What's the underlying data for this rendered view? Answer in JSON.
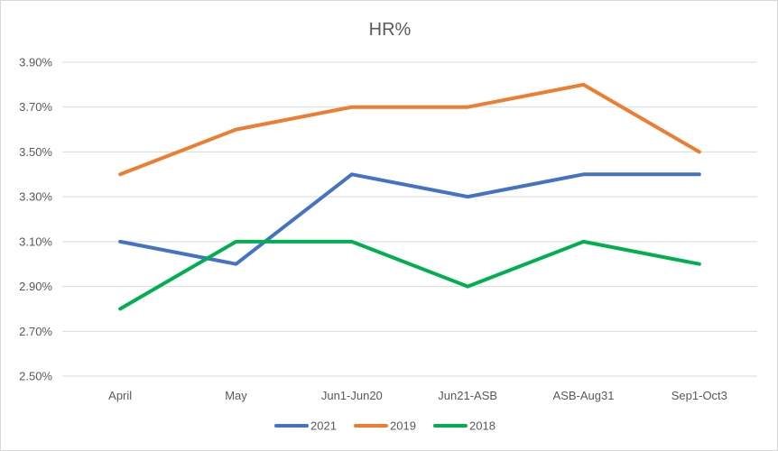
{
  "chart_data": {
    "type": "line",
    "title": "HR%",
    "xlabel": "",
    "ylabel": "",
    "categories": [
      "April",
      "May",
      "Jun1-Jun20",
      "Jun21-ASB",
      "ASB-Aug31",
      "Sep1-Oct3"
    ],
    "y_ticks": [
      "2.50%",
      "2.70%",
      "2.90%",
      "3.10%",
      "3.30%",
      "3.50%",
      "3.70%",
      "3.90%"
    ],
    "ylim": [
      2.5,
      3.9
    ],
    "grid": true,
    "legend_position": "bottom",
    "series": [
      {
        "name": "2021",
        "color": "#4472c4",
        "values": [
          3.1,
          3.0,
          3.4,
          3.3,
          3.4,
          3.4
        ]
      },
      {
        "name": "2019",
        "color": "#ed7d31",
        "values": [
          3.4,
          3.6,
          3.7,
          3.7,
          3.8,
          3.5
        ]
      },
      {
        "name": "2018",
        "color": "#00b050",
        "values": [
          2.8,
          3.1,
          3.1,
          2.9,
          3.1,
          3.0
        ]
      }
    ]
  }
}
